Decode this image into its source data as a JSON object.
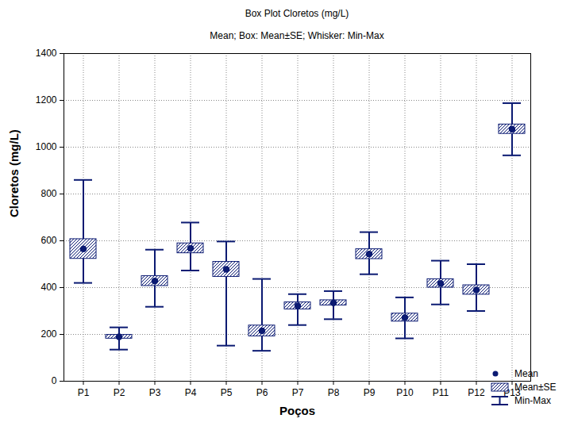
{
  "chart_data": {
    "type": "box",
    "title": "Box Plot Cloretos (mg/L)",
    "subtitle": "Mean; Box: Mean±SE; Whisker: Min-Max",
    "x_label": "Poços",
    "y_label": "Cloretos (mg/L)",
    "categories": [
      "P1",
      "P2",
      "P3",
      "P4",
      "P5",
      "P6",
      "P7",
      "P8",
      "P9",
      "P10",
      "P11",
      "P12",
      "P13"
    ],
    "series": [
      {
        "name": "Mean",
        "color": "#0b1a72",
        "marker": "circle",
        "values": [
          565,
          190,
          428,
          568,
          478,
          215,
          322,
          335,
          543,
          272,
          418,
          390,
          1077
        ]
      },
      {
        "name": "Mean±SE",
        "color": "#0b1a72",
        "se": [
          42,
          8,
          21,
          21,
          32,
          23,
          15,
          11,
          21,
          17,
          18,
          20,
          20
        ]
      },
      {
        "name": "Min-Max",
        "color": "#0b1a72",
        "min": [
          420,
          135,
          318,
          473,
          152,
          130,
          240,
          265,
          457,
          183,
          328,
          300,
          965
        ],
        "max": [
          860,
          230,
          562,
          678,
          597,
          437,
          372,
          385,
          637,
          358,
          515,
          500,
          1188
        ]
      }
    ],
    "ylim": [
      0,
      1400
    ],
    "yticks": [
      0,
      200,
      400,
      600,
      800,
      1000,
      1200,
      1400
    ],
    "grid": true,
    "legend": "bottom-right"
  }
}
